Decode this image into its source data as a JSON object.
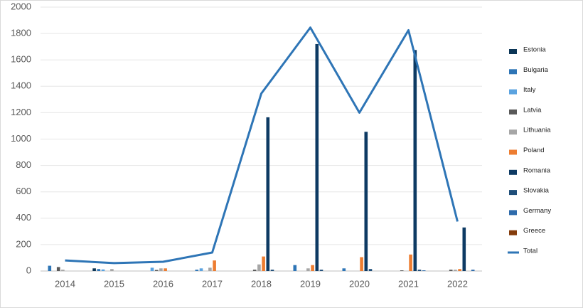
{
  "chart_data": {
    "type": "bar-line",
    "categories": [
      "2014",
      "2015",
      "2016",
      "2017",
      "2018",
      "2019",
      "2020",
      "2021",
      "2022"
    ],
    "series": [
      {
        "name": "Estonia",
        "color": "#0b3556",
        "values": [
          0,
          20,
          0,
          0,
          0,
          0,
          0,
          0,
          0
        ]
      },
      {
        "name": "Bulgaria",
        "color": "#2e75b6",
        "values": [
          40,
          15,
          0,
          10,
          0,
          45,
          20,
          0,
          0
        ]
      },
      {
        "name": "Italy",
        "color": "#5ba3e0",
        "values": [
          0,
          12,
          25,
          20,
          0,
          0,
          0,
          0,
          0
        ]
      },
      {
        "name": "Latvia",
        "color": "#595959",
        "values": [
          30,
          0,
          8,
          0,
          10,
          0,
          0,
          5,
          10
        ]
      },
      {
        "name": "Lithuania",
        "color": "#a6a6a6",
        "values": [
          10,
          15,
          20,
          25,
          50,
          20,
          0,
          0,
          10
        ]
      },
      {
        "name": "Poland",
        "color": "#ed7d31",
        "values": [
          0,
          0,
          20,
          80,
          110,
          45,
          105,
          125,
          15
        ]
      },
      {
        "name": "Romania",
        "color": "#0d3a63",
        "values": [
          0,
          0,
          0,
          0,
          1165,
          1720,
          1055,
          1675,
          330
        ]
      },
      {
        "name": "Slovakia",
        "color": "#1f4e79",
        "values": [
          0,
          0,
          0,
          0,
          10,
          10,
          15,
          10,
          0
        ]
      },
      {
        "name": "Germany",
        "color": "#2e6bab",
        "values": [
          0,
          0,
          0,
          0,
          0,
          0,
          0,
          5,
          10
        ]
      },
      {
        "name": "Greece",
        "color": "#843c0c",
        "values": [
          0,
          0,
          0,
          0,
          0,
          0,
          0,
          0,
          0
        ]
      },
      {
        "name": "Total",
        "color": "#2e75b6",
        "type": "line",
        "values": [
          80,
          60,
          70,
          140,
          1345,
          1845,
          1200,
          1825,
          375
        ]
      }
    ],
    "ylim": [
      0,
      2000
    ],
    "yticks": [
      0,
      200,
      400,
      600,
      800,
      1000,
      1200,
      1400,
      1600,
      1800,
      2000
    ],
    "grid": true
  }
}
